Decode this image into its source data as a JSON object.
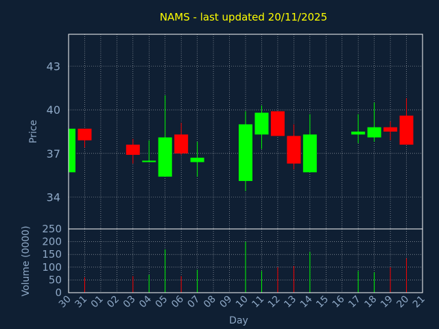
{
  "chart_data": {
    "type": "candlestick",
    "title": "NAMS - last updated 20/11/2025",
    "xlabel": "Day",
    "colors": {
      "background": "#0f1f33",
      "up": "#00ff00",
      "down": "#ff0000",
      "axis": "#ffffff",
      "grid": "#ffffff",
      "text": "#8fa9c7",
      "title": "#ffff00"
    },
    "x_tick_labels": [
      "30",
      "31",
      "01",
      "02",
      "03",
      "04",
      "05",
      "06",
      "07",
      "08",
      "09",
      "10",
      "11",
      "12",
      "13",
      "14",
      "15",
      "16",
      "17",
      "18",
      "19",
      "20",
      "21"
    ],
    "price_panel": {
      "ylabel": "Price",
      "ylim": [
        31.8,
        45.2
      ],
      "yticks": [
        34,
        37,
        40,
        43
      ],
      "grid": true
    },
    "volume_panel": {
      "ylabel": "Volume (0000)",
      "ylim": [
        0,
        250
      ],
      "yticks": [
        0,
        50,
        100,
        150,
        200,
        250
      ],
      "grid": true
    },
    "candles": [
      {
        "day": "30",
        "open": 35.7,
        "high": 38.7,
        "low": 35.7,
        "close": 38.7,
        "volume": 80
      },
      {
        "day": "31",
        "open": 38.7,
        "high": 38.7,
        "low": 37.4,
        "close": 37.9,
        "volume": 60
      },
      {
        "day": "03",
        "open": 37.6,
        "high": 38.0,
        "low": 36.3,
        "close": 36.9,
        "volume": 65
      },
      {
        "day": "04",
        "open": 36.4,
        "high": 37.9,
        "low": 36.4,
        "close": 36.5,
        "volume": 70
      },
      {
        "day": "05",
        "open": 35.4,
        "high": 41.0,
        "low": 35.4,
        "close": 38.1,
        "volume": 170
      },
      {
        "day": "06",
        "open": 38.3,
        "high": 39.1,
        "low": 36.9,
        "close": 37.0,
        "volume": 65
      },
      {
        "day": "07",
        "open": 36.4,
        "high": 37.8,
        "low": 35.4,
        "close": 36.7,
        "volume": 90
      },
      {
        "day": "10",
        "open": 35.1,
        "high": 39.9,
        "low": 34.4,
        "close": 39.0,
        "volume": 200
      },
      {
        "day": "11",
        "open": 38.3,
        "high": 40.3,
        "low": 37.3,
        "close": 39.8,
        "volume": 85
      },
      {
        "day": "12",
        "open": 39.9,
        "high": 39.9,
        "low": 38.2,
        "close": 38.2,
        "volume": 100
      },
      {
        "day": "13",
        "open": 38.2,
        "high": 39.0,
        "low": 35.9,
        "close": 36.3,
        "volume": 105
      },
      {
        "day": "14",
        "open": 35.7,
        "high": 39.7,
        "low": 35.7,
        "close": 38.3,
        "volume": 160
      },
      {
        "day": "17",
        "open": 38.3,
        "high": 39.7,
        "low": 37.7,
        "close": 38.5,
        "volume": 85
      },
      {
        "day": "18",
        "open": 38.1,
        "high": 40.5,
        "low": 37.8,
        "close": 38.8,
        "volume": 80
      },
      {
        "day": "19",
        "open": 38.8,
        "high": 39.2,
        "low": 37.9,
        "close": 38.5,
        "volume": 100
      },
      {
        "day": "20",
        "open": 39.6,
        "high": 40.8,
        "low": 37.6,
        "close": 37.6,
        "volume": 135
      }
    ]
  }
}
